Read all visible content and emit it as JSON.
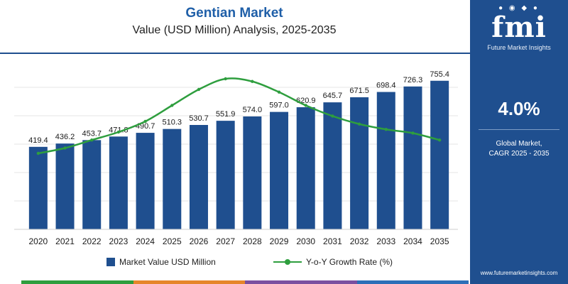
{
  "header": {
    "title": "Gentian Market",
    "subtitle": "Value (USD Million) Analysis, 2025-2035"
  },
  "legend": {
    "bar_label": "Market Value USD Million",
    "line_label": "Y-o-Y Growth Rate (%)"
  },
  "sidebar": {
    "logo_mark": "fmi",
    "logo_text": "Future Market Insights",
    "cagr_value": "4.0%",
    "cagr_label_line1": "Global Market,",
    "cagr_label_line2": "CAGR 2025 - 2035",
    "website": "www.futuremarketinsights.com"
  },
  "colors": {
    "bar": "#1f4f8f",
    "line": "#2e9e3e",
    "sidebar_bg": "#1f4f8f",
    "title": "#1f5fa8",
    "strip": [
      "#2e9e3e",
      "#e6862a",
      "#7b4fa0",
      "#2c6fb8"
    ]
  },
  "chart_data": {
    "type": "bar",
    "categories": [
      "2020",
      "2021",
      "2022",
      "2023",
      "2024",
      "2025",
      "2026",
      "2027",
      "2028",
      "2029",
      "2030",
      "2031",
      "2032",
      "2033",
      "2034",
      "2035"
    ],
    "series": [
      {
        "name": "Market Value USD Million",
        "type": "bar",
        "values": [
          419.4,
          436.2,
          453.7,
          471.8,
          490.7,
          510.3,
          530.7,
          551.9,
          574.0,
          597.0,
          620.9,
          645.7,
          671.5,
          698.4,
          726.3,
          755.4
        ],
        "labels": [
          "419.4",
          "436.2",
          "453.7",
          "471.8",
          "490.7",
          "510.3",
          "530.7",
          "551.9",
          "574.0",
          "597.0",
          "620.9",
          "645.7",
          "671.5",
          "698.4",
          "726.3",
          "755.4"
        ]
      },
      {
        "name": "Y-o-Y Growth Rate (%)",
        "type": "line",
        "values": [
          3.6,
          3.7,
          3.85,
          4.0,
          4.2,
          4.5,
          4.8,
          5.0,
          4.95,
          4.75,
          4.5,
          4.3,
          4.15,
          4.05,
          3.98,
          3.85
        ]
      }
    ],
    "ylim": [
      0,
      800
    ],
    "y2lim": [
      3.0,
      5.4
    ],
    "grid": true,
    "legend": "bottom"
  }
}
